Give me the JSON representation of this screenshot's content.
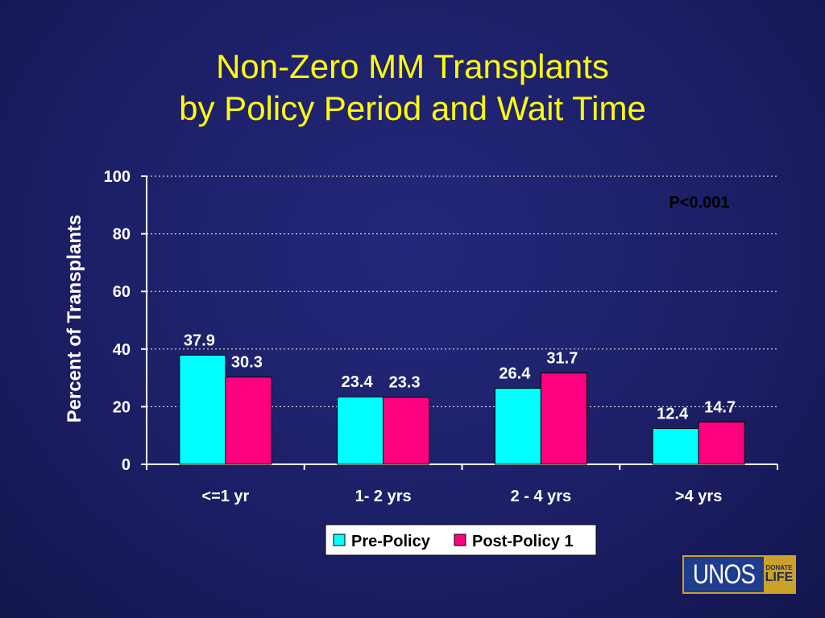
{
  "title": {
    "line1": "Non-Zero MM Transplants",
    "line2": "by Policy Period and Wait Time"
  },
  "chart_data": {
    "type": "bar",
    "categories": [
      "<=1 yr",
      "1- 2 yrs",
      "2 - 4 yrs",
      ">4 yrs"
    ],
    "series": [
      {
        "name": "Pre-Policy",
        "values": [
          37.9,
          23.4,
          26.4,
          12.4
        ],
        "color": "#00ffff"
      },
      {
        "name": "Post-Policy 1",
        "values": [
          30.3,
          23.3,
          31.7,
          14.7
        ],
        "color": "#ff0080"
      }
    ],
    "ylabel": "Percent of Transplants",
    "xlabel": "",
    "ylim": [
      0,
      100
    ],
    "yticks": [
      0,
      20,
      40,
      60,
      80,
      100
    ],
    "grid": true,
    "legend_position": "bottom",
    "annotation": "P<0.001",
    "colors": {
      "plot_background": "#ffffff",
      "text": "#ffffff",
      "gridline": "#ffffff"
    }
  },
  "logo": {
    "name": "UNOS",
    "badge_top": "DONATE",
    "badge_bottom": "LIFE"
  }
}
